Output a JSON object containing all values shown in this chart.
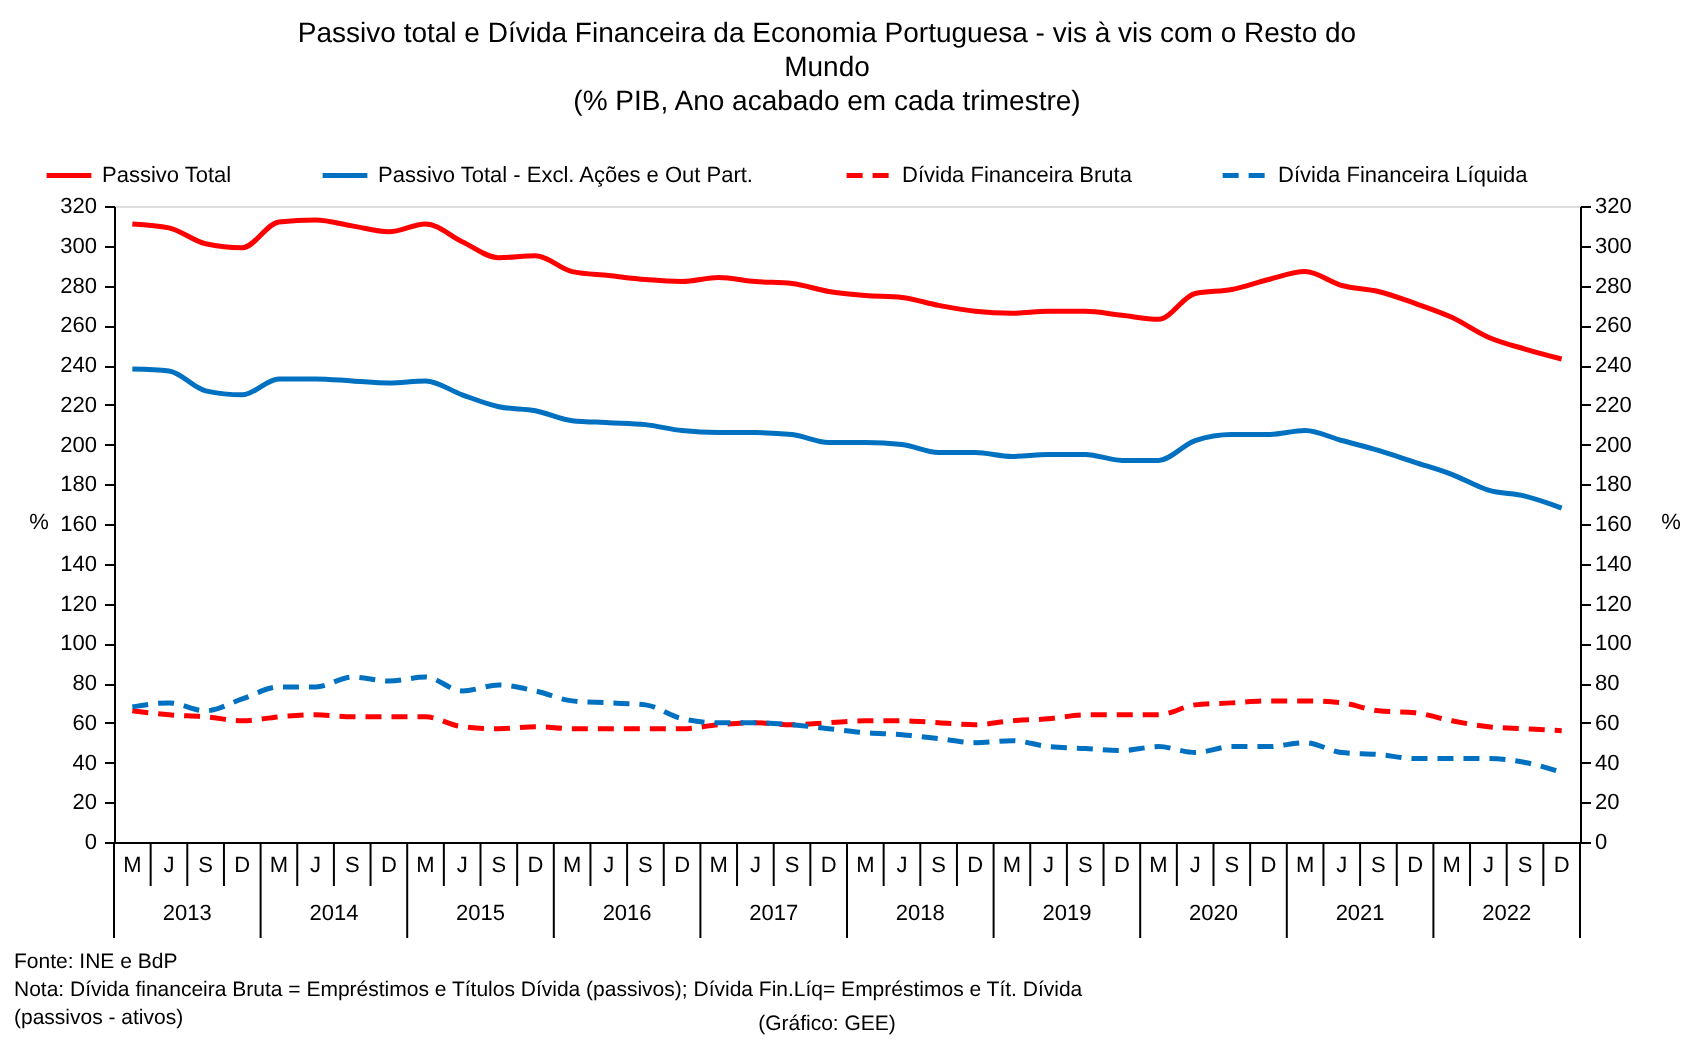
{
  "chart_data": {
    "type": "line",
    "title": "Passivo total e Dívida Financeira da Economia Portuguesa - vis à vis com o Resto do Mundo",
    "subtitle": "(% PIB, Ano acabado em cada trimestre)",
    "ylabel": "%",
    "y2label": "%",
    "categories": [
      "M",
      "J",
      "S",
      "D",
      "M",
      "J",
      "S",
      "D",
      "M",
      "J",
      "S",
      "D",
      "M",
      "J",
      "S",
      "D",
      "M",
      "J",
      "S",
      "D",
      "M",
      "J",
      "S",
      "D",
      "M",
      "J",
      "S",
      "D",
      "M",
      "J",
      "S",
      "D",
      "M",
      "J",
      "S",
      "D",
      "M",
      "J",
      "S",
      "D"
    ],
    "series": [
      {
        "name": "Passivo Total",
        "color": "#ff0000",
        "line_style": "solid",
        "values": [
          311,
          309,
          301,
          299,
          312,
          313,
          310,
          307,
          311,
          302,
          294,
          295,
          287,
          285,
          283,
          282,
          284,
          282,
          281,
          277,
          275,
          274,
          270,
          267,
          266,
          267,
          267,
          265,
          263,
          276,
          278,
          283,
          287,
          280,
          277,
          271,
          264,
          254,
          248,
          243
        ]
      },
      {
        "name": "Passivo Total - Excl. Ações e Out Part.",
        "color": "#0070c0",
        "line_style": "solid",
        "values": [
          238,
          237,
          227,
          225,
          233,
          233,
          232,
          231,
          232,
          225,
          219,
          217,
          212,
          211,
          210,
          207,
          206,
          206,
          205,
          201,
          201,
          200,
          196,
          196,
          194,
          195,
          195,
          192,
          192,
          202,
          205,
          205,
          207,
          202,
          197,
          191,
          185,
          177,
          174,
          168
        ]
      },
      {
        "name": "Dívida Financeira Bruta",
        "color": "#ff0000",
        "line_style": "dashed",
        "values": [
          66,
          64,
          63,
          61,
          63,
          64,
          63,
          63,
          63,
          58,
          57,
          58,
          57,
          57,
          57,
          57,
          59,
          60,
          59,
          60,
          61,
          61,
          60,
          59,
          61,
          62,
          64,
          64,
          64,
          69,
          70,
          71,
          71,
          70,
          66,
          65,
          61,
          58,
          57,
          56
        ]
      },
      {
        "name": "Dívida Financeira Líquida",
        "color": "#0070c0",
        "line_style": "dashed",
        "values": [
          68,
          70,
          66,
          72,
          78,
          78,
          83,
          81,
          83,
          76,
          79,
          76,
          71,
          70,
          69,
          62,
          60,
          60,
          59,
          57,
          55,
          54,
          52,
          50,
          51,
          48,
          47,
          46,
          48,
          45,
          48,
          48,
          50,
          45,
          44,
          42,
          42,
          42,
          40,
          35
        ]
      }
    ],
    "ylim": [
      0,
      320
    ],
    "yticks": [
      0,
      20,
      40,
      60,
      80,
      100,
      120,
      140,
      160,
      180,
      200,
      220,
      240,
      260,
      280,
      300,
      320
    ],
    "y2lim": [
      0,
      320
    ],
    "y2ticks": [
      0,
      20,
      40,
      60,
      80,
      100,
      120,
      140,
      160,
      180,
      200,
      220,
      240,
      260,
      280,
      300,
      320
    ],
    "grid": false,
    "legend": "top",
    "marker": "none",
    "annotations": [
      {
        "text": "2013"
      },
      {
        "text": "2014"
      },
      {
        "text": "2015"
      },
      {
        "text": "2016"
      },
      {
        "text": "2017"
      },
      {
        "text": "2018"
      },
      {
        "text": "2019"
      },
      {
        "text": "2020"
      },
      {
        "text": "2021"
      },
      {
        "text": "2022"
      },
      "Fonte: INE e BdP",
      "Nota: Dívida financeira Bruta = Empréstimos e Títulos Dívida (passivos);  Dívida Fin.Líq= Empréstimos e Tít. Dívida (passivos - ativos)",
      "(Gráfico: GEE)"
    ]
  }
}
